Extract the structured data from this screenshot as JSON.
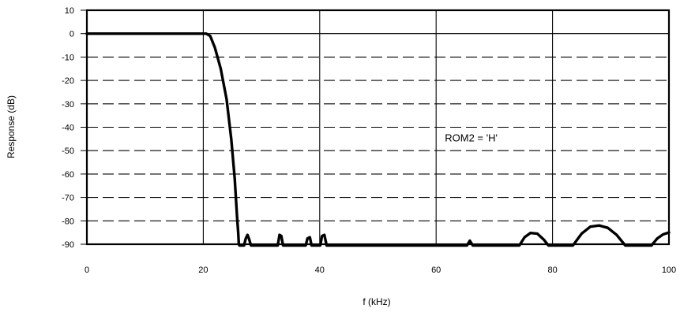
{
  "chart_data": {
    "type": "line",
    "title": "",
    "xlabel": "f (kHz)",
    "ylabel": "Response (dB)",
    "xlim": [
      0,
      100
    ],
    "ylim": [
      -90,
      10
    ],
    "xticks": [
      0,
      20,
      40,
      60,
      80,
      100
    ],
    "xtick_labels": [
      "0",
      "20",
      "40",
      "60",
      "80",
      "100"
    ],
    "yticks": [
      10,
      0,
      -10,
      -20,
      -30,
      -40,
      -50,
      -60,
      -70,
      -80,
      -90
    ],
    "ytick_labels": [
      "10",
      "0",
      "-10",
      "-20",
      "-30",
      "-40",
      "-50",
      "-60",
      "-70",
      "-80",
      "-90"
    ],
    "grid": {
      "vertical": "solid",
      "horizontal": "dashed"
    },
    "annotation": {
      "text": "ROM2 = 'H'",
      "x": 61.5,
      "y": -45
    },
    "series": [
      {
        "x": [
          0,
          20.5,
          21.2,
          22,
          23,
          24,
          24.8,
          25.4,
          25.8,
          26,
          26.1,
          26.2,
          27,
          27.3,
          27.6,
          27.9,
          28.2,
          32.8,
          33.1,
          33.4,
          33.7,
          37.6,
          37.9,
          38.3,
          38.6,
          40.1,
          40.4,
          40.8,
          41.2,
          65.3,
          65.8,
          66.3,
          74.3,
          75.2,
          76.2,
          77.4,
          78.5,
          79.3,
          83.5,
          85,
          86.5,
          88,
          89.5,
          91,
          92.5,
          97,
          98,
          99,
          100
        ],
        "y": [
          0,
          0,
          -1,
          -6,
          -15,
          -28,
          -45,
          -62,
          -78,
          -85,
          -90,
          -90.5,
          -90.5,
          -87.5,
          -86,
          -88,
          -90.5,
          -90.5,
          -86,
          -86.5,
          -90.5,
          -90.5,
          -87.5,
          -87,
          -90.5,
          -90.5,
          -86.5,
          -86,
          -90.5,
          -90.5,
          -88.5,
          -90.5,
          -90.5,
          -87,
          -85.2,
          -85.5,
          -88,
          -90.5,
          -90.5,
          -85.5,
          -82.5,
          -82,
          -83,
          -86,
          -90.5,
          -90.5,
          -87.5,
          -85.8,
          -85
        ]
      }
    ]
  }
}
